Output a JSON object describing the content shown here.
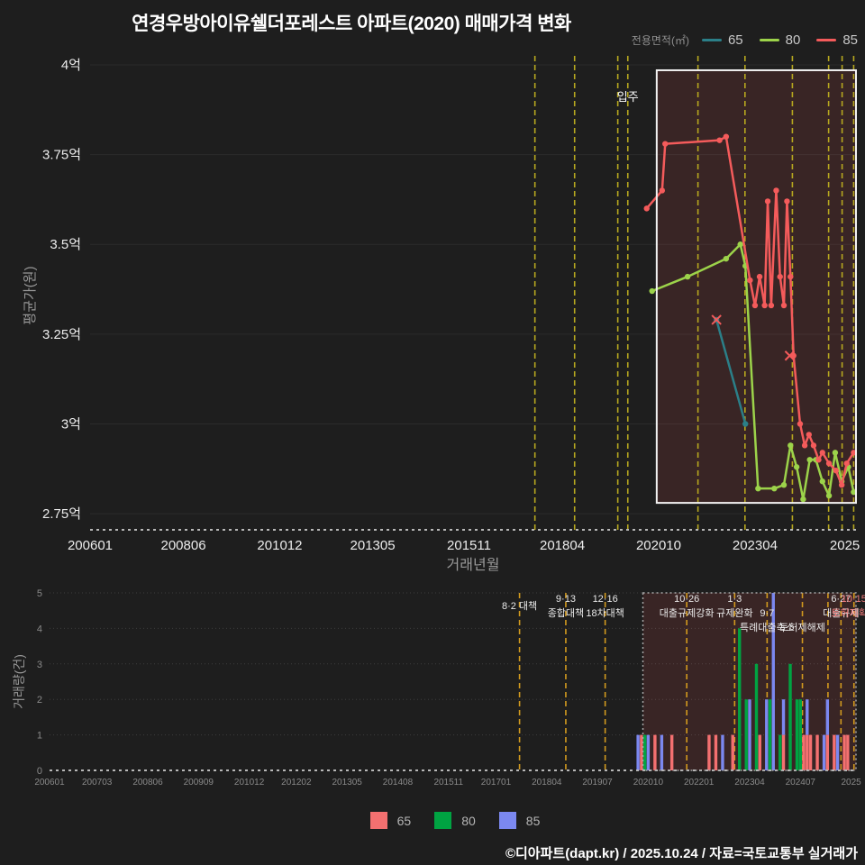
{
  "title": "연경우방아이유쉘더포레스트 아파트(2020) 매매가격 변화",
  "footer": "©디아파트(dapt.kr) / 2025.10.24 / 자료=국토교통부 실거래가",
  "colors": {
    "background": "#1e1e1e",
    "text_primary": "#ffffff",
    "text_muted": "#999999",
    "axis_text": "#ececec",
    "tick_text_small": "#8a8a8a",
    "line_65": "#2b7f88",
    "line_80": "#9cd34a",
    "line_85": "#f45b5b",
    "bar_65": "#f47070",
    "bar_80": "#00a342",
    "bar_85": "#7b88f0",
    "policy_line_price": "#b7a81f",
    "policy_line_volume": "#d29a1e",
    "highlight_fill": "rgba(196,72,72,0.16)",
    "highlight_border_price": "#f2f2f2",
    "highlight_border_volume": "#a8a8a8",
    "grid_price": "rgba(255,255,255,0.06)",
    "grid_volume": "rgba(255,255,255,0.14)",
    "axis_dash": "#b8b8b8",
    "annotation_text": "#eaeaea",
    "annotation_red": "#f37b7b"
  },
  "top_legend": {
    "caption": "전용면적(㎡)",
    "items": [
      {
        "label": "65",
        "color": "#2b7f88"
      },
      {
        "label": "80",
        "color": "#9cd34a"
      },
      {
        "label": "85",
        "color": "#f45b5b"
      }
    ]
  },
  "bottom_legend": {
    "items": [
      {
        "label": "65",
        "color": "#f47070"
      },
      {
        "label": "80",
        "color": "#00a342"
      },
      {
        "label": "85",
        "color": "#7b88f0"
      }
    ]
  },
  "chart_data": [
    {
      "type": "line",
      "name": "price-trend",
      "title": "매매가격 변화",
      "xlabel": "거래년월",
      "ylabel": "평균가(원)",
      "unit": "억",
      "xlim": [
        2006.0,
        2025.87
      ],
      "ylim": [
        2.705,
        4.01
      ],
      "x_ticks": [
        {
          "v": 2006.0,
          "label": "200601"
        },
        {
          "v": 2008.42,
          "label": "200806"
        },
        {
          "v": 2010.92,
          "label": "201012"
        },
        {
          "v": 2013.33,
          "label": "201305"
        },
        {
          "v": 2015.83,
          "label": "201511"
        },
        {
          "v": 2018.25,
          "label": "201804"
        },
        {
          "v": 2020.75,
          "label": "202010"
        },
        {
          "v": 2023.25,
          "label": "202304"
        },
        {
          "v": 2025.58,
          "label": "2025"
        }
      ],
      "y_ticks": [
        {
          "v": 4.0,
          "label": "4억"
        },
        {
          "v": 3.75,
          "label": "3.75억"
        },
        {
          "v": 3.5,
          "label": "3.5억"
        },
        {
          "v": 3.25,
          "label": "3.25억"
        },
        {
          "v": 3.0,
          "label": "3억"
        },
        {
          "v": 2.75,
          "label": "2.75억"
        }
      ],
      "policy_lines_x": [
        2017.54,
        2018.57,
        2019.69,
        2019.95,
        2021.77,
        2022.99,
        2024.22,
        2025.16,
        2025.51,
        2025.81
      ],
      "move_in": {
        "label": "입주",
        "x": 2019.95
      },
      "highlight_box": {
        "x0": 2020.7,
        "x1": 2025.87,
        "y0": 2.78,
        "y1": 3.985
      },
      "series": [
        {
          "name": "65",
          "color_key": "line_65",
          "points": [
            [
              2022.25,
              3.29
            ],
            [
              2023.0,
              3.0
            ]
          ]
        },
        {
          "name": "80",
          "color_key": "line_80",
          "points": [
            [
              2020.58,
              3.37
            ],
            [
              2021.5,
              3.41
            ],
            [
              2022.5,
              3.46
            ],
            [
              2022.87,
              3.5
            ],
            [
              2023.0,
              3.44
            ],
            [
              2023.33,
              2.82
            ],
            [
              2023.75,
              2.82
            ],
            [
              2024.0,
              2.83
            ],
            [
              2024.17,
              2.94
            ],
            [
              2024.33,
              2.88
            ],
            [
              2024.5,
              2.79
            ],
            [
              2024.67,
              2.9
            ],
            [
              2024.83,
              2.9
            ],
            [
              2025.0,
              2.84
            ],
            [
              2025.17,
              2.8
            ],
            [
              2025.33,
              2.92
            ],
            [
              2025.5,
              2.84
            ],
            [
              2025.67,
              2.88
            ],
            [
              2025.81,
              2.81
            ]
          ]
        },
        {
          "name": "85",
          "color_key": "line_85",
          "points": [
            [
              2020.44,
              3.6
            ],
            [
              2020.84,
              3.65
            ],
            [
              2020.92,
              3.78
            ],
            [
              2022.33,
              3.79
            ],
            [
              2022.5,
              3.8
            ],
            [
              2023.12,
              3.4
            ],
            [
              2023.25,
              3.33
            ],
            [
              2023.37,
              3.41
            ],
            [
              2023.5,
              3.33
            ],
            [
              2023.58,
              3.62
            ],
            [
              2023.67,
              3.33
            ],
            [
              2023.8,
              3.65
            ],
            [
              2023.9,
              3.41
            ],
            [
              2024.0,
              3.33
            ],
            [
              2024.08,
              3.62
            ],
            [
              2024.17,
              3.41
            ],
            [
              2024.25,
              3.19
            ],
            [
              2024.42,
              3.0
            ],
            [
              2024.54,
              2.94
            ],
            [
              2024.65,
              2.97
            ],
            [
              2024.77,
              2.94
            ],
            [
              2024.9,
              2.9
            ],
            [
              2025.0,
              2.92
            ],
            [
              2025.17,
              2.89
            ],
            [
              2025.35,
              2.87
            ],
            [
              2025.5,
              2.83
            ],
            [
              2025.63,
              2.89
            ],
            [
              2025.81,
              2.92
            ]
          ]
        }
      ],
      "cancel_markers": {
        "color_key": "line_85",
        "points": [
          [
            2022.25,
            3.29
          ],
          [
            2024.15,
            3.19
          ]
        ]
      }
    },
    {
      "type": "bar",
      "name": "volume",
      "ylabel": "거래량(건)",
      "ylim": [
        0,
        5
      ],
      "y_ticks": [
        0,
        1,
        2,
        3,
        4,
        5
      ],
      "xlim": [
        2006.0,
        2025.87
      ],
      "x_ticks": [
        {
          "v": 2006.0,
          "label": "200601"
        },
        {
          "v": 2007.17,
          "label": "200703"
        },
        {
          "v": 2008.42,
          "label": "200806"
        },
        {
          "v": 2009.67,
          "label": "200909"
        },
        {
          "v": 2010.92,
          "label": "201012"
        },
        {
          "v": 2012.08,
          "label": "201202"
        },
        {
          "v": 2013.33,
          "label": "201305"
        },
        {
          "v": 2014.58,
          "label": "201408"
        },
        {
          "v": 2015.83,
          "label": "201511"
        },
        {
          "v": 2017.0,
          "label": "201701"
        },
        {
          "v": 2018.25,
          "label": "201804"
        },
        {
          "v": 2019.5,
          "label": "201907"
        },
        {
          "v": 2020.75,
          "label": "202010"
        },
        {
          "v": 2022.0,
          "label": "202201"
        },
        {
          "v": 2023.25,
          "label": "202304"
        },
        {
          "v": 2024.5,
          "label": "202407"
        },
        {
          "v": 2025.75,
          "label": "2025"
        }
      ],
      "policy_lines_x": [
        2017.58,
        2018.72,
        2019.69,
        2021.7,
        2022.88,
        2023.68,
        2024.55,
        2025.18,
        2025.5,
        2025.82
      ],
      "highlight_box": {
        "x0": 2020.62,
        "x1": 2025.87
      },
      "size_keys": [
        "65",
        "80",
        "85"
      ],
      "bars": [
        {
          "ym": "2020-07",
          "c": [
            0,
            0,
            1
          ]
        },
        {
          "ym": "2020-08",
          "c": [
            1,
            0,
            0
          ]
        },
        {
          "ym": "2020-09",
          "c": [
            0,
            1,
            0
          ]
        },
        {
          "ym": "2020-10",
          "c": [
            0,
            0,
            1
          ]
        },
        {
          "ym": "2020-12",
          "c": [
            1,
            0,
            0
          ]
        },
        {
          "ym": "2021-02",
          "c": [
            0,
            0,
            1
          ]
        },
        {
          "ym": "2021-05",
          "c": [
            1,
            0,
            0
          ]
        },
        {
          "ym": "2022-04",
          "c": [
            1,
            0,
            0
          ]
        },
        {
          "ym": "2022-06",
          "c": [
            1,
            0,
            0
          ]
        },
        {
          "ym": "2022-08",
          "c": [
            0,
            0,
            1
          ]
        },
        {
          "ym": "2022-11",
          "c": [
            1,
            0,
            0
          ]
        },
        {
          "ym": "2023-01",
          "c": [
            0,
            4,
            0
          ]
        },
        {
          "ym": "2023-03",
          "c": [
            0,
            2,
            0
          ]
        },
        {
          "ym": "2023-04",
          "c": [
            0,
            0,
            2
          ]
        },
        {
          "ym": "2023-06",
          "c": [
            0,
            3,
            0
          ]
        },
        {
          "ym": "2023-07",
          "c": [
            1,
            0,
            0
          ]
        },
        {
          "ym": "2023-09",
          "c": [
            0,
            0,
            2
          ]
        },
        {
          "ym": "2023-10",
          "c": [
            0,
            2,
            0
          ]
        },
        {
          "ym": "2023-11",
          "c": [
            0,
            0,
            5
          ]
        },
        {
          "ym": "2024-01",
          "c": [
            0,
            1,
            0
          ]
        },
        {
          "ym": "2024-02",
          "c": [
            1,
            0,
            1
          ]
        },
        {
          "ym": "2024-04",
          "c": [
            0,
            3,
            0
          ]
        },
        {
          "ym": "2024-06",
          "c": [
            0,
            2,
            0
          ]
        },
        {
          "ym": "2024-07",
          "c": [
            0,
            2,
            0
          ]
        },
        {
          "ym": "2024-08",
          "c": [
            1,
            0,
            0
          ]
        },
        {
          "ym": "2024-09",
          "c": [
            1,
            0,
            1
          ]
        },
        {
          "ym": "2024-10",
          "c": [
            1,
            0,
            0
          ]
        },
        {
          "ym": "2024-12",
          "c": [
            1,
            0,
            0
          ]
        },
        {
          "ym": "2025-02",
          "c": [
            0,
            0,
            1
          ]
        },
        {
          "ym": "2025-03",
          "c": [
            1,
            0,
            1
          ]
        },
        {
          "ym": "2025-05",
          "c": [
            1,
            0,
            0
          ]
        },
        {
          "ym": "2025-06",
          "c": [
            0,
            0,
            1
          ]
        },
        {
          "ym": "2025-08",
          "c": [
            1,
            0,
            0
          ]
        },
        {
          "ym": "2025-09",
          "c": [
            1,
            0,
            0
          ]
        }
      ],
      "annotations": [
        {
          "x": 2017.58,
          "lines": [
            "8·2 대책"
          ],
          "dy": 8
        },
        {
          "x": 2018.72,
          "lines": [
            "9·13",
            "종합대책"
          ],
          "dy": 0
        },
        {
          "x": 2019.69,
          "lines": [
            "12·16",
            "18차대책"
          ],
          "dy": 0
        },
        {
          "x": 2021.7,
          "lines": [
            "10·26",
            "대출규제강화"
          ],
          "dy": 0
        },
        {
          "x": 2022.88,
          "lines": [
            "1·3",
            "규제완화"
          ],
          "dy": 0
        },
        {
          "x": 2023.68,
          "lines": [
            "9·7",
            "특례대출축소"
          ],
          "dy": 16
        },
        {
          "x": 2024.55,
          "lines": [
            "토허제해제"
          ],
          "dy": 32
        },
        {
          "x": 2025.5,
          "lines": [
            "6·27",
            "대출규제"
          ],
          "dy": 0
        },
        {
          "x": 2025.82,
          "lines": [
            "10·15",
            "토허제확대"
          ],
          "dy": 0,
          "color": "#f37b7b"
        }
      ]
    }
  ]
}
